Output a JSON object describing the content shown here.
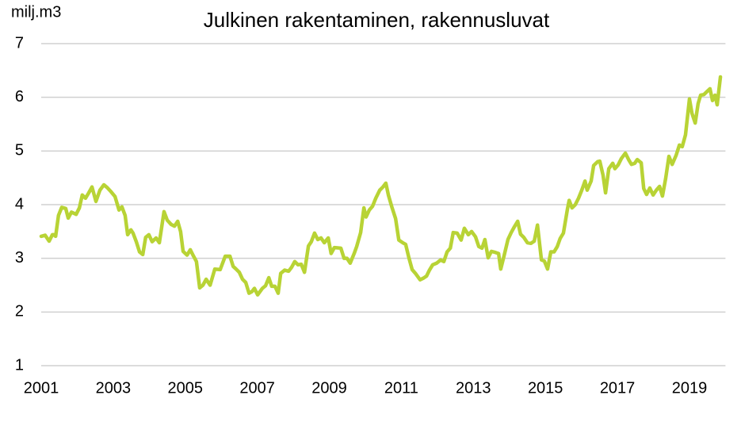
{
  "chart_data": {
    "type": "line",
    "title": "Julkinen rakentaminen, rakennusluvat",
    "y_label": "milj.m3",
    "color": "#b8d335",
    "grid": true,
    "xlim": [
      2001,
      2020
    ],
    "xticks": [
      2001,
      2003,
      2005,
      2007,
      2009,
      2011,
      2013,
      2015,
      2017,
      2019
    ],
    "ylim": [
      1,
      7
    ],
    "yticks": [
      1,
      2,
      3,
      4,
      5,
      6,
      7
    ],
    "x": [
      2001.0,
      2001.11,
      2001.22,
      2001.31,
      2001.35,
      2001.4,
      2001.48,
      2001.57,
      2001.68,
      2001.75,
      2001.84,
      2001.97,
      2002.06,
      2002.14,
      2002.23,
      2002.32,
      2002.41,
      2002.52,
      2002.63,
      2002.74,
      2002.83,
      2002.94,
      2003.05,
      2003.16,
      2003.24,
      2003.33,
      2003.4,
      2003.49,
      2003.55,
      2003.64,
      2003.73,
      2003.82,
      2003.9,
      2003.99,
      2004.08,
      2004.19,
      2004.28,
      2004.41,
      2004.5,
      2004.61,
      2004.7,
      2004.79,
      2004.87,
      2004.94,
      2005.05,
      2005.14,
      2005.23,
      2005.31,
      2005.4,
      2005.49,
      2005.58,
      2005.69,
      2005.82,
      2005.97,
      2006.11,
      2006.24,
      2006.33,
      2006.41,
      2006.5,
      2006.59,
      2006.68,
      2006.77,
      2006.85,
      2006.92,
      2007.01,
      2007.14,
      2007.23,
      2007.32,
      2007.4,
      2007.49,
      2007.58,
      2007.65,
      2007.76,
      2007.87,
      2007.95,
      2008.04,
      2008.13,
      2008.22,
      2008.31,
      2008.42,
      2008.5,
      2008.59,
      2008.68,
      2008.77,
      2008.86,
      2008.97,
      2009.05,
      2009.14,
      2009.32,
      2009.41,
      2009.49,
      2009.58,
      2009.69,
      2009.76,
      2009.87,
      2009.96,
      2010.02,
      2010.11,
      2010.2,
      2010.29,
      2010.4,
      2010.49,
      2010.57,
      2010.64,
      2010.73,
      2010.84,
      2010.93,
      2011.04,
      2011.12,
      2011.21,
      2011.3,
      2011.39,
      2011.52,
      2011.61,
      2011.7,
      2011.78,
      2011.87,
      2011.98,
      2012.09,
      2012.18,
      2012.27,
      2012.36,
      2012.44,
      2012.55,
      2012.66,
      2012.75,
      2012.86,
      2012.95,
      2013.06,
      2013.15,
      2013.24,
      2013.32,
      2013.41,
      2013.5,
      2013.61,
      2013.7,
      2013.76,
      2013.85,
      2013.96,
      2014.05,
      2014.14,
      2014.23,
      2014.31,
      2014.4,
      2014.5,
      2014.6,
      2014.69,
      2014.78,
      2014.89,
      2014.97,
      2015.06,
      2015.15,
      2015.24,
      2015.33,
      2015.41,
      2015.5,
      2015.61,
      2015.66,
      2015.74,
      2015.83,
      2015.92,
      2016.01,
      2016.1,
      2016.16,
      2016.27,
      2016.34,
      2016.45,
      2016.51,
      2016.6,
      2016.67,
      2016.76,
      2016.87,
      2016.93,
      2017.02,
      2017.11,
      2017.22,
      2017.31,
      2017.39,
      2017.48,
      2017.55,
      2017.66,
      2017.73,
      2017.81,
      2017.9,
      2017.99,
      2018.08,
      2018.17,
      2018.25,
      2018.34,
      2018.43,
      2018.52,
      2018.63,
      2018.72,
      2018.8,
      2018.89,
      2019.0,
      2019.07,
      2019.16,
      2019.24,
      2019.31,
      2019.4,
      2019.49,
      2019.57,
      2019.64,
      2019.71,
      2019.77,
      2019.86
    ],
    "values": [
      3.41,
      3.43,
      3.32,
      3.44,
      3.44,
      3.41,
      3.8,
      3.95,
      3.93,
      3.75,
      3.86,
      3.82,
      3.94,
      4.18,
      4.12,
      4.22,
      4.33,
      4.06,
      4.27,
      4.37,
      4.32,
      4.24,
      4.15,
      3.9,
      3.96,
      3.8,
      3.44,
      3.53,
      3.47,
      3.31,
      3.12,
      3.07,
      3.39,
      3.44,
      3.31,
      3.38,
      3.29,
      3.87,
      3.71,
      3.63,
      3.6,
      3.69,
      3.5,
      3.13,
      3.06,
      3.16,
      3.04,
      2.94,
      2.45,
      2.5,
      2.61,
      2.5,
      2.8,
      2.79,
      3.04,
      3.04,
      2.85,
      2.8,
      2.74,
      2.61,
      2.55,
      2.35,
      2.38,
      2.44,
      2.32,
      2.44,
      2.49,
      2.64,
      2.48,
      2.48,
      2.35,
      2.72,
      2.78,
      2.76,
      2.83,
      2.94,
      2.88,
      2.89,
      2.74,
      3.23,
      3.31,
      3.47,
      3.35,
      3.38,
      3.29,
      3.38,
      3.09,
      3.2,
      3.19,
      3.0,
      3.0,
      2.91,
      3.09,
      3.22,
      3.48,
      3.94,
      3.77,
      3.9,
      3.97,
      4.12,
      4.27,
      4.33,
      4.4,
      4.18,
      3.97,
      3.74,
      3.34,
      3.29,
      3.26,
      3.01,
      2.79,
      2.72,
      2.6,
      2.63,
      2.67,
      2.78,
      2.88,
      2.91,
      2.97,
      2.94,
      3.12,
      3.19,
      3.48,
      3.47,
      3.34,
      3.56,
      3.44,
      3.5,
      3.4,
      3.22,
      3.19,
      3.35,
      3.01,
      3.13,
      3.11,
      3.09,
      2.8,
      3.04,
      3.35,
      3.48,
      3.59,
      3.69,
      3.45,
      3.39,
      3.29,
      3.28,
      3.32,
      3.62,
      2.97,
      2.95,
      2.8,
      3.12,
      3.12,
      3.22,
      3.37,
      3.47,
      3.91,
      4.08,
      3.94,
      4.0,
      4.12,
      4.27,
      4.44,
      4.27,
      4.44,
      4.73,
      4.8,
      4.81,
      4.55,
      4.22,
      4.67,
      4.77,
      4.67,
      4.74,
      4.86,
      4.96,
      4.84,
      4.75,
      4.77,
      4.84,
      4.78,
      4.3,
      4.19,
      4.31,
      4.18,
      4.27,
      4.34,
      4.16,
      4.49,
      4.9,
      4.75,
      4.92,
      5.11,
      5.08,
      5.3,
      5.97,
      5.7,
      5.52,
      5.88,
      6.04,
      6.05,
      6.11,
      6.16,
      5.94,
      6.04,
      5.86,
      6.38
    ]
  }
}
